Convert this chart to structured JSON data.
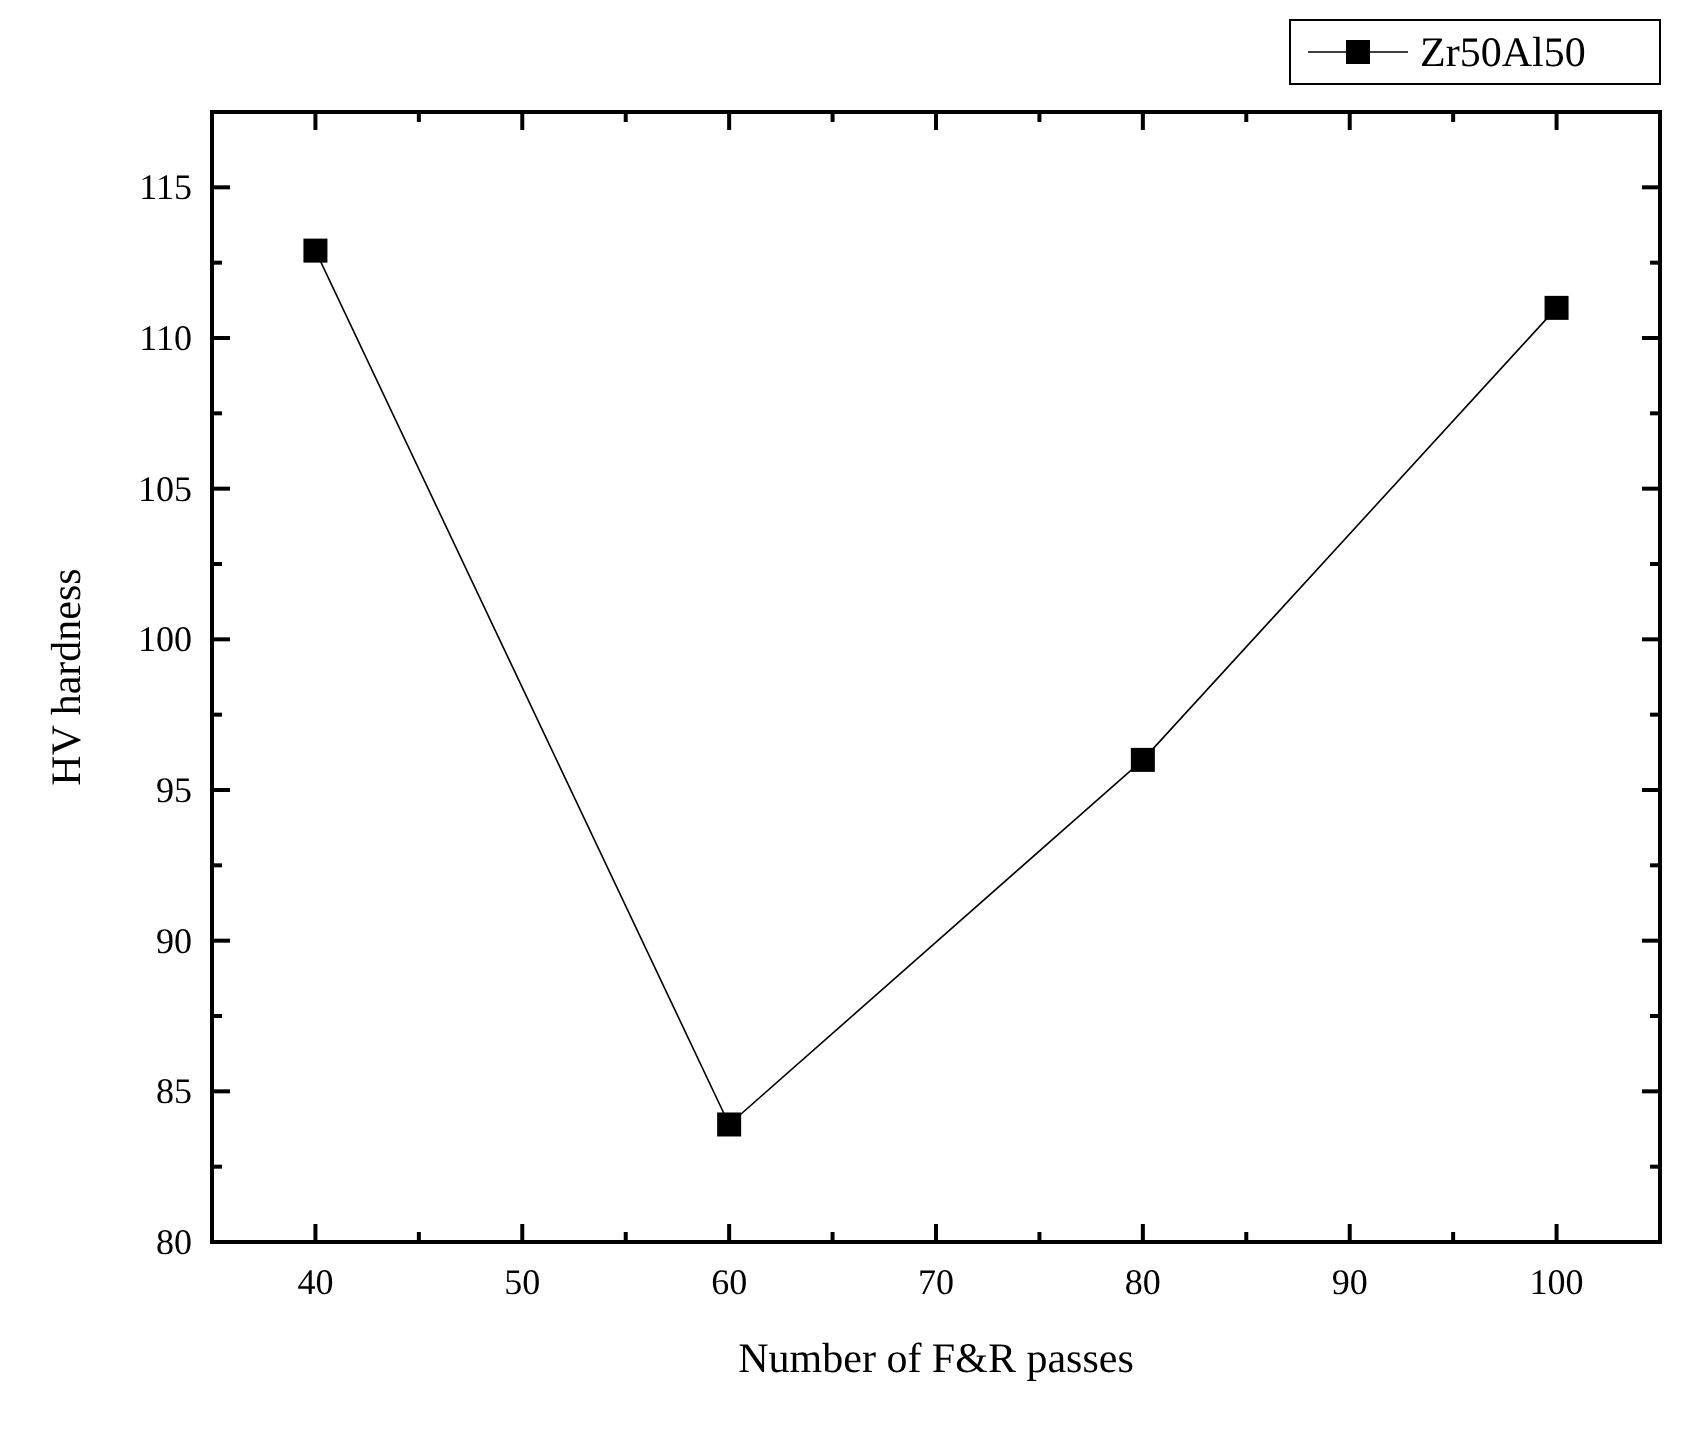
{
  "chart_data": {
    "type": "line",
    "xlabel": "Number of F&R passes",
    "ylabel": "HV hardness",
    "x": [
      40,
      60,
      80,
      100
    ],
    "series": [
      {
        "name": "Zr50Al50",
        "color": "#000000",
        "values": [
          112.9,
          83.9,
          96,
          111
        ]
      }
    ],
    "xlim": [
      35,
      105
    ],
    "ylim": [
      80,
      117.5
    ],
    "xticks": [
      40,
      {
        "value": 45,
        "label": null
      },
      50,
      {
        "value": 55,
        "label": null
      },
      60,
      {
        "value": 65,
        "label": null
      },
      70,
      {
        "value": 75,
        "label": null
      },
      80,
      {
        "value": 85,
        "label": null
      },
      90,
      {
        "value": 95,
        "label": null
      },
      100
    ],
    "yticks": [
      80,
      {
        "value": 82.5,
        "label": null
      },
      85,
      {
        "value": 87.5,
        "label": null
      },
      90,
      {
        "value": 92.5,
        "label": null
      },
      95,
      {
        "value": 97.5,
        "label": null
      },
      100,
      {
        "value": 102.5,
        "label": null
      },
      105,
      {
        "value": 107.5,
        "label": null
      },
      110,
      {
        "value": 112.5,
        "label": null
      },
      115
    ],
    "marker": "square",
    "line_style": "solid",
    "legend": "top right",
    "grid": false
  }
}
